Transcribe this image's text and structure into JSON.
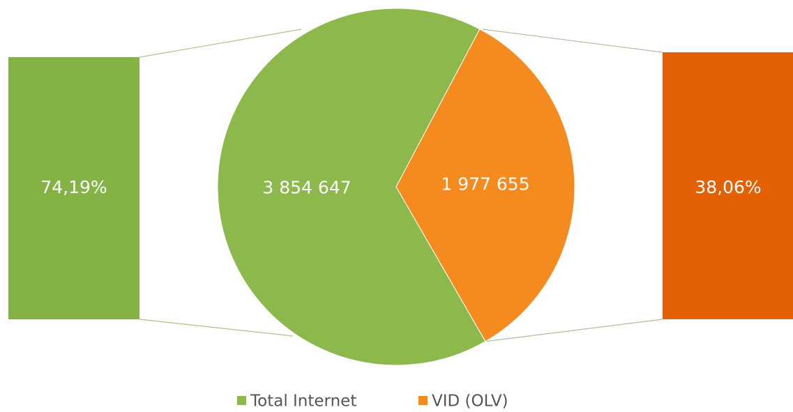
{
  "chart_data": {
    "type": "pie",
    "categories": [
      "Total Internet",
      "VID (OLV)"
    ],
    "values": [
      3854647,
      1977655
    ],
    "value_labels": [
      "3 854 647",
      "1 977 655"
    ],
    "colors": [
      "#8cb84c",
      "#f58a1f"
    ],
    "shares": [
      74.19,
      38.06
    ],
    "share_labels": [
      "74,19%",
      "38,06%"
    ],
    "share_colors": [
      "#84b245",
      "#e36103"
    ],
    "legend": "bottom"
  }
}
